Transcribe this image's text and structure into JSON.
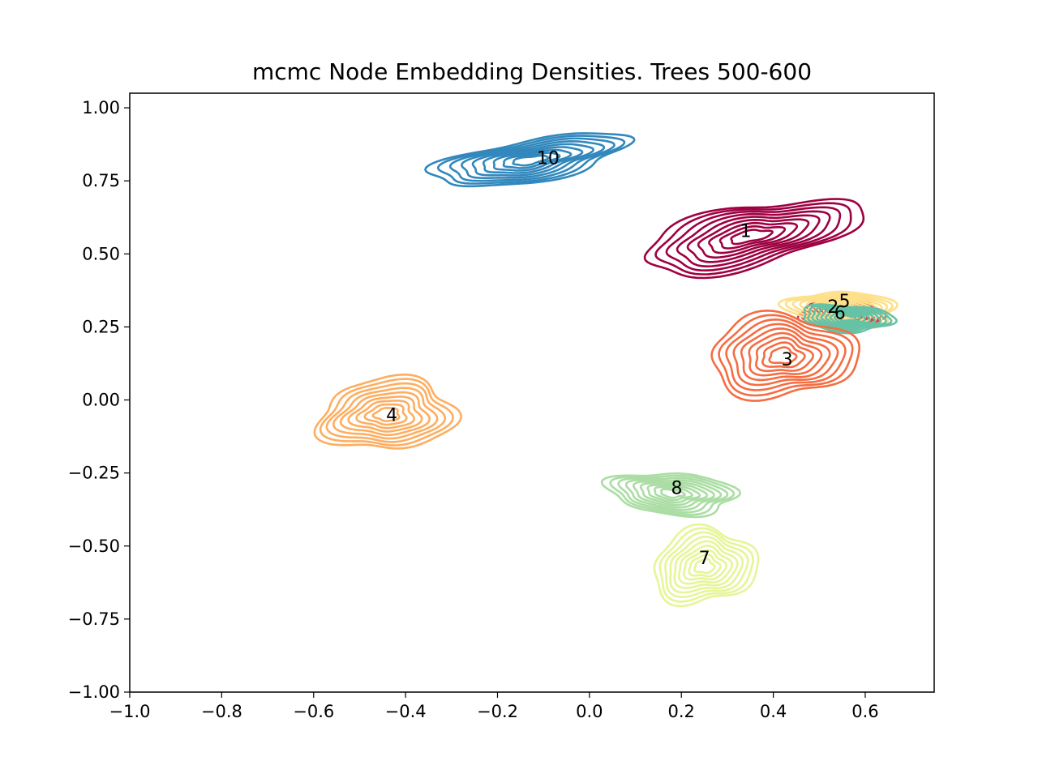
{
  "chart_data": {
    "type": "contour",
    "title": "mcmc Node Embedding Densities. Trees 500-600",
    "xlabel": "",
    "ylabel": "",
    "xlim": [
      -1.0,
      0.75
    ],
    "ylim": [
      -1.0,
      1.05
    ],
    "xticks": [
      -1.0,
      -0.8,
      -0.6,
      -0.4,
      -0.2,
      0.0,
      0.2,
      0.4,
      0.6
    ],
    "xtick_labels": [
      "−1.0",
      "−0.8",
      "−0.6",
      "−0.4",
      "−0.2",
      "0.0",
      "0.2",
      "0.4",
      "0.6"
    ],
    "yticks": [
      1.0,
      0.75,
      0.5,
      0.25,
      0.0,
      -0.25,
      -0.5,
      -0.75,
      -1.0
    ],
    "ytick_labels": [
      "1.00",
      "0.75",
      "0.50",
      "0.25",
      "0.00",
      "−0.25",
      "−0.50",
      "−0.75",
      "−1.00"
    ],
    "grid": false,
    "legend": false,
    "levels": 9,
    "series": [
      {
        "label": "10",
        "color": "#3288bd",
        "center": [
          -0.13,
          0.82
        ],
        "spread": [
          0.22,
          0.07
        ],
        "angle_deg": 16,
        "label_pos": [
          -0.09,
          0.83
        ]
      },
      {
        "label": "1",
        "color": "#9e0142",
        "center": [
          0.35,
          0.56
        ],
        "spread": [
          0.25,
          0.1
        ],
        "angle_deg": 20,
        "label_pos": [
          0.34,
          0.58
        ]
      },
      {
        "label": "2",
        "color": "#d53e4f",
        "center": [
          0.55,
          0.3
        ],
        "spread": [
          0.09,
          0.05
        ],
        "angle_deg": 0,
        "label_pos": [
          0.53,
          0.32
        ]
      },
      {
        "label": "5",
        "color": "#fee08b",
        "center": [
          0.55,
          0.31
        ],
        "spread": [
          0.12,
          0.06
        ],
        "angle_deg": -5,
        "label_pos": [
          0.555,
          0.34
        ]
      },
      {
        "label": "6",
        "color": "#66c2a5",
        "center": [
          0.56,
          0.28
        ],
        "spread": [
          0.1,
          0.045
        ],
        "angle_deg": -5,
        "label_pos": [
          0.545,
          0.3
        ]
      },
      {
        "label": "3",
        "color": "#f46d43",
        "center": [
          0.42,
          0.15
        ],
        "spread": [
          0.16,
          0.14
        ],
        "angle_deg": 10,
        "label_pos": [
          0.43,
          0.14
        ]
      },
      {
        "label": "4",
        "color": "#fdae61",
        "center": [
          -0.44,
          -0.05
        ],
        "spread": [
          0.15,
          0.12
        ],
        "angle_deg": 15,
        "label_pos": [
          -0.43,
          -0.05
        ]
      },
      {
        "label": "8",
        "color": "#abdda4",
        "center": [
          0.18,
          -0.32
        ],
        "spread": [
          0.14,
          0.07
        ],
        "angle_deg": -8,
        "label_pos": [
          0.19,
          -0.3
        ]
      },
      {
        "label": "7",
        "color": "#e6f598",
        "center": [
          0.25,
          -0.57
        ],
        "spread": [
          0.11,
          0.13
        ],
        "angle_deg": -20,
        "label_pos": [
          0.25,
          -0.54
        ]
      }
    ]
  }
}
